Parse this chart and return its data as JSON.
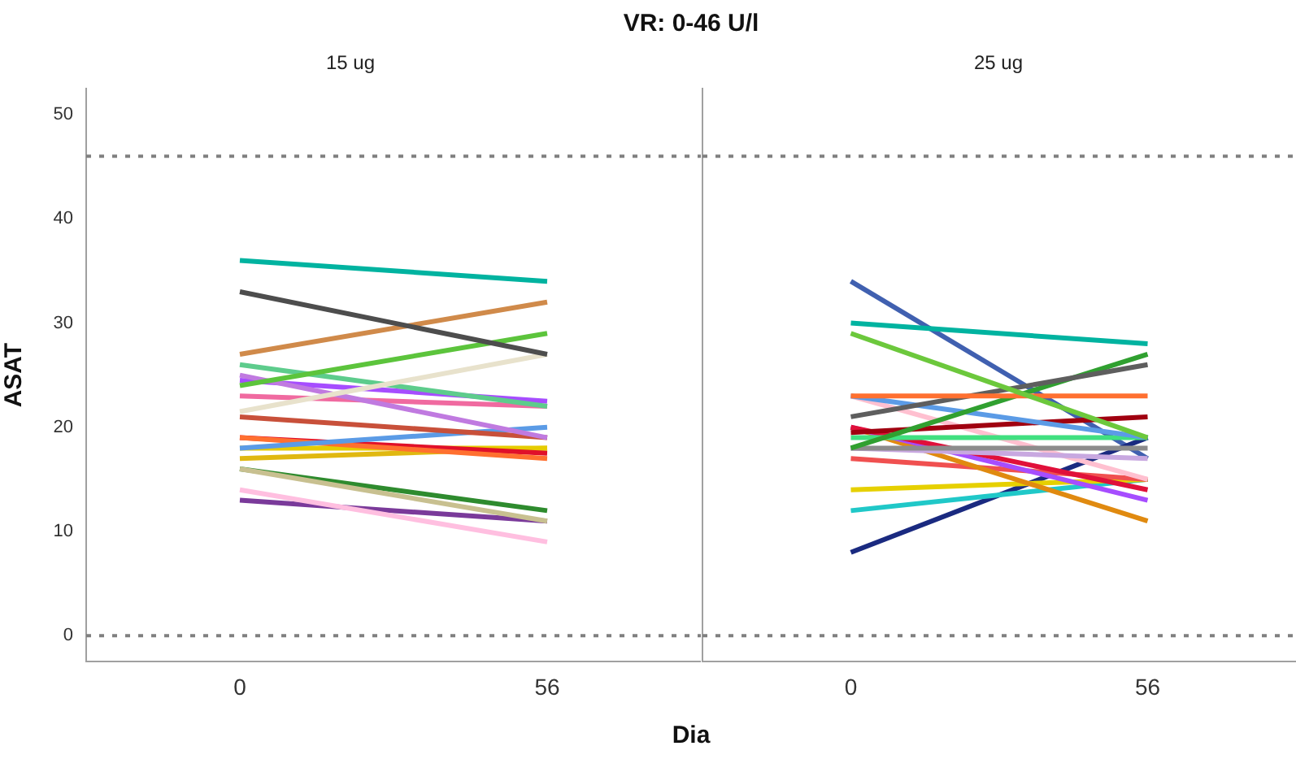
{
  "chart_data": [
    {
      "type": "line",
      "title": "VR: 0-46 U/l",
      "subtitle": "15 ug",
      "xlabel": "Dia",
      "ylabel": "ASAT",
      "categories": [
        "0",
        "56"
      ],
      "ylim": [
        -2.5,
        52.5
      ],
      "yticks": [
        0,
        10,
        20,
        30,
        40,
        50
      ],
      "grid": false,
      "legend": false,
      "marker": "none",
      "ref_lines": [
        {
          "axis": "y",
          "value": 0,
          "color": "#808080",
          "line_style": "dotted"
        },
        {
          "axis": "y",
          "value": 46,
          "color": "#808080",
          "line_style": "dotted"
        }
      ],
      "series": [
        {
          "color": "#00b3a0",
          "values": [
            36,
            34
          ]
        },
        {
          "color": "#4d4d4d",
          "values": [
            33,
            27
          ]
        },
        {
          "color": "#d08a4a",
          "values": [
            27,
            32
          ]
        },
        {
          "color": "#5cc43c",
          "values": [
            24,
            29
          ]
        },
        {
          "color": "#e8e2cc",
          "values": [
            21.5,
            27
          ]
        },
        {
          "color": "#5dcc8c",
          "values": [
            26,
            22
          ]
        },
        {
          "color": "#c07ae0",
          "values": [
            25,
            19
          ]
        },
        {
          "color": "#a64dff",
          "values": [
            24.5,
            22.5
          ]
        },
        {
          "color": "#f06aa0",
          "values": [
            23,
            22
          ]
        },
        {
          "color": "#c8503a",
          "values": [
            21,
            19
          ]
        },
        {
          "color": "#5b9be6",
          "values": [
            18,
            20
          ]
        },
        {
          "color": "#ff7030",
          "values": [
            19,
            17
          ]
        },
        {
          "color": "#e0102a",
          "values": [
            19,
            17.5
          ]
        },
        {
          "color": "#e6cc00",
          "values": [
            18,
            18
          ]
        },
        {
          "color": "#e0b810",
          "values": [
            17,
            18
          ]
        },
        {
          "color": "#c8c090",
          "values": [
            16,
            11
          ]
        },
        {
          "color": "#2e8b2e",
          "values": [
            16,
            12
          ]
        },
        {
          "color": "#ffbfe0",
          "values": [
            14,
            9
          ]
        },
        {
          "color": "#7a3a9a",
          "values": [
            13,
            11
          ]
        }
      ]
    },
    {
      "type": "line",
      "subtitle": "25 ug",
      "categories": [
        "0",
        "56"
      ],
      "ylim": [
        -2.5,
        52.5
      ],
      "yticks": [
        0,
        10,
        20,
        30,
        40,
        50
      ],
      "tick_labels": "x",
      "grid": false,
      "legend": false,
      "marker": "none",
      "ref_lines": [
        {
          "axis": "y",
          "value": 0,
          "color": "#808080",
          "line_style": "dotted"
        },
        {
          "axis": "y",
          "value": 46,
          "color": "#808080",
          "line_style": "dotted"
        }
      ],
      "series": [
        {
          "color": "#00b3a0",
          "values": [
            30,
            28
          ]
        },
        {
          "color": "#6cc83c",
          "values": [
            29,
            19
          ]
        },
        {
          "color": "#ff7030",
          "values": [
            23,
            23
          ]
        },
        {
          "color": "#5e5e5e",
          "values": [
            21,
            26
          ]
        },
        {
          "color": "#30a030",
          "values": [
            18,
            27
          ]
        },
        {
          "color": "#5b9be6",
          "values": [
            23,
            19
          ]
        },
        {
          "color": "#a00010",
          "values": [
            19.5,
            21
          ]
        },
        {
          "color": "#40e080",
          "values": [
            19,
            19
          ]
        },
        {
          "color": "#8c8c8c",
          "values": [
            18,
            18
          ]
        },
        {
          "color": "#c8a8e0",
          "values": [
            18,
            17
          ]
        },
        {
          "color": "#e0103a",
          "values": [
            20,
            14
          ]
        },
        {
          "color": "#a64dff",
          "values": [
            20,
            13
          ]
        },
        {
          "color": "#e08a10",
          "values": [
            20,
            11
          ]
        },
        {
          "color": "#ffc0d0",
          "values": [
            23,
            15
          ]
        },
        {
          "color": "#f05050",
          "values": [
            17,
            15
          ]
        },
        {
          "color": "#e6d000",
          "values": [
            14,
            15
          ]
        },
        {
          "color": "#20c8c8",
          "values": [
            12,
            15
          ]
        },
        {
          "color": "#1a2a80",
          "values": [
            8,
            19
          ]
        },
        {
          "color": "#4060b0",
          "values": [
            34,
            17
          ]
        }
      ]
    }
  ]
}
